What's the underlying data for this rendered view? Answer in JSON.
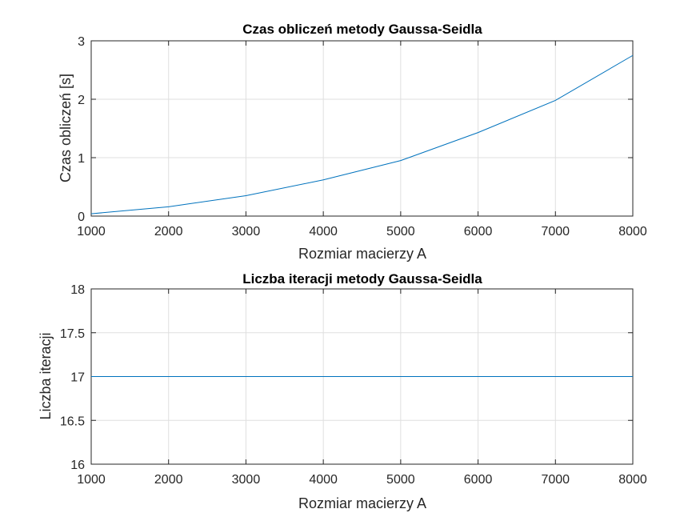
{
  "chart_data": [
    {
      "type": "line",
      "title": "Czas obliczeń metody Gaussa-Seidla",
      "xlabel": "Rozmiar macierzy A",
      "ylabel": "Czas obliczeń [s]",
      "xlim": [
        1000,
        8000
      ],
      "ylim": [
        0,
        3
      ],
      "xticks": [
        1000,
        2000,
        3000,
        4000,
        5000,
        6000,
        7000,
        8000
      ],
      "yticks": [
        0,
        1,
        2,
        3
      ],
      "grid": true,
      "x": [
        1000,
        2000,
        3000,
        4000,
        5000,
        6000,
        7000,
        8000
      ],
      "series": [
        {
          "values": [
            0.04,
            0.16,
            0.35,
            0.62,
            0.95,
            1.43,
            1.98,
            2.75
          ],
          "color": "#0072bd"
        }
      ]
    },
    {
      "type": "line",
      "title": "Liczba iteracji metody Gaussa-Seidla",
      "xlabel": "Rozmiar macierzy A",
      "ylabel": "Liczba iteracji",
      "xlim": [
        1000,
        8000
      ],
      "ylim": [
        16,
        18
      ],
      "xticks": [
        1000,
        2000,
        3000,
        4000,
        5000,
        6000,
        7000,
        8000
      ],
      "yticks": [
        16,
        16.5,
        17,
        17.5,
        18
      ],
      "grid": true,
      "x": [
        1000,
        2000,
        3000,
        4000,
        5000,
        6000,
        7000,
        8000
      ],
      "series": [
        {
          "values": [
            17,
            17,
            17,
            17,
            17,
            17,
            17,
            17
          ],
          "color": "#0072bd"
        }
      ]
    }
  ]
}
